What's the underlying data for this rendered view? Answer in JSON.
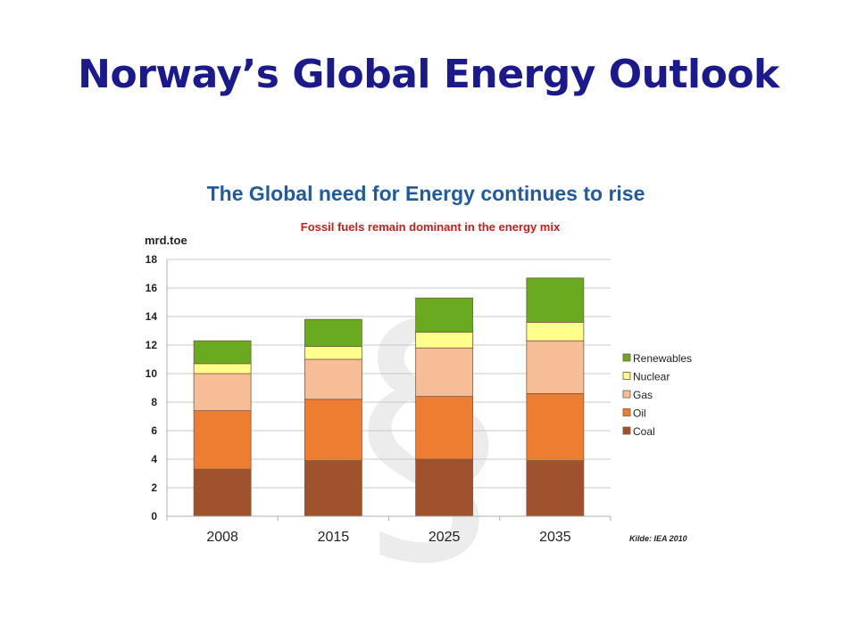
{
  "slide": {
    "title": "Norway’s Global Energy Outlook"
  },
  "chart_data": {
    "type": "bar",
    "stacked": true,
    "title": "The Global need for Energy continues to rise",
    "subtitle": "Fossil fuels remain dominant in the energy mix",
    "ylabel": "mrd.toe",
    "xlabel": "",
    "ylim": [
      0,
      18
    ],
    "yticks": [
      0,
      2,
      4,
      6,
      8,
      10,
      12,
      14,
      16,
      18
    ],
    "categories": [
      "2008",
      "2015",
      "2025",
      "2035"
    ],
    "series": [
      {
        "name": "Coal",
        "color": "#a0522d",
        "values": [
          3.3,
          3.9,
          4.0,
          3.9
        ]
      },
      {
        "name": "Oil",
        "color": "#ed7d31",
        "values": [
          4.1,
          4.3,
          4.4,
          4.7
        ]
      },
      {
        "name": "Gas",
        "color": "#f7bd96",
        "values": [
          2.6,
          2.8,
          3.4,
          3.7
        ]
      },
      {
        "name": "Nuclear",
        "color": "#ffff8c",
        "values": [
          0.7,
          0.9,
          1.1,
          1.3
        ]
      },
      {
        "name": "Renewables",
        "color": "#6aaa1e",
        "values": [
          1.6,
          1.9,
          2.4,
          3.1
        ]
      }
    ],
    "legend_position": "right",
    "legend_order": [
      "Renewables",
      "Nuclear",
      "Gas",
      "Oil",
      "Coal"
    ],
    "grid": true,
    "source": "Kilde: IEA  2010"
  }
}
